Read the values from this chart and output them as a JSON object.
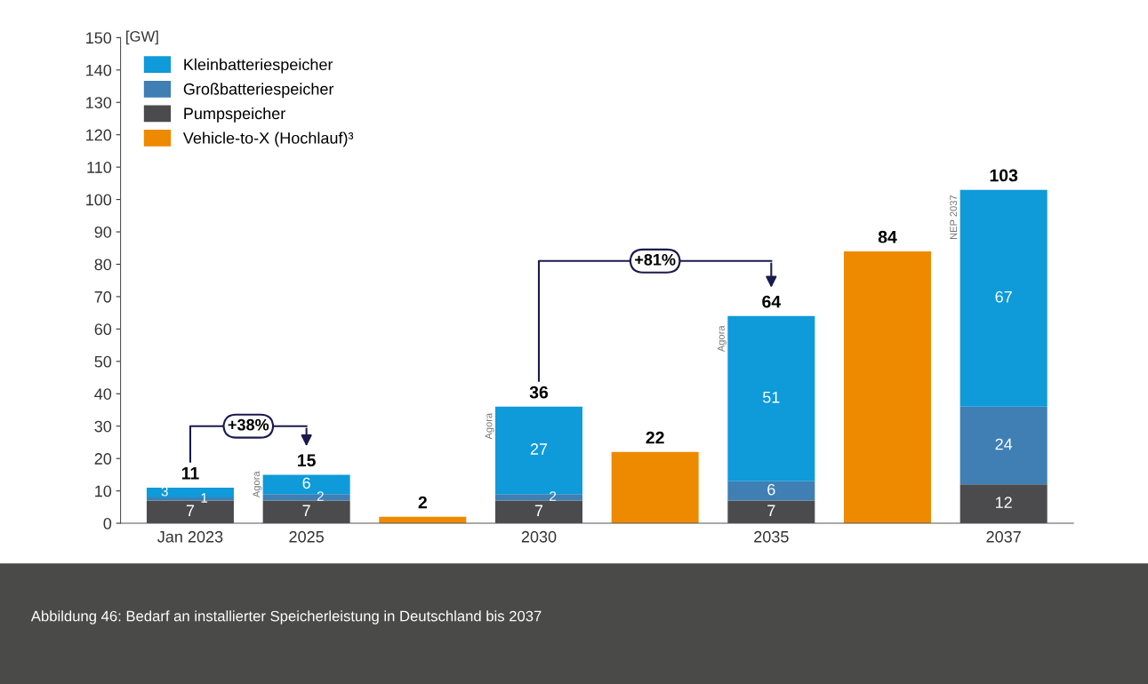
{
  "chart_data": {
    "type": "bar",
    "stacked": true,
    "ylabel": "[GW]",
    "categories": [
      "Jan 2023",
      "2025",
      null,
      "2030",
      null,
      "2035",
      null,
      "2037"
    ],
    "series": [
      {
        "name": "Pumpspeicher",
        "color": "#4b4b4d",
        "values": [
          7,
          7,
          null,
          7,
          null,
          7,
          null,
          12
        ]
      },
      {
        "name": "Großbatteriespeicher",
        "color": "#3f7fb3",
        "values": [
          1,
          2,
          null,
          2,
          null,
          6,
          null,
          24
        ]
      },
      {
        "name": "Kleinbatteriespeicher",
        "color": "#0f9ad9",
        "values": [
          3,
          6,
          null,
          27,
          null,
          51,
          null,
          67
        ]
      },
      {
        "name": "Vehicle-to-X (Hochlauf)³",
        "color": "#ee8a00",
        "values": [
          null,
          null,
          2,
          null,
          22,
          null,
          84,
          null
        ]
      }
    ],
    "data_labels": true,
    "totals": [
      "11",
      "15",
      null,
      "36",
      null,
      "64",
      null,
      "103"
    ],
    "ylim": [
      0,
      150
    ],
    "yticks": [
      0,
      10,
      20,
      30,
      40,
      50,
      60,
      70,
      80,
      90,
      100,
      110,
      120,
      130,
      140,
      150
    ],
    "grid": false,
    "legend": "top left",
    "annotations": [
      "+38%",
      "+81%",
      "Agora",
      "Agora",
      "Agora",
      "NEP 2037",
      "Abbildung 46: Bedarf an installierter Speicherleistung in Deutschland bis 2037"
    ]
  }
}
